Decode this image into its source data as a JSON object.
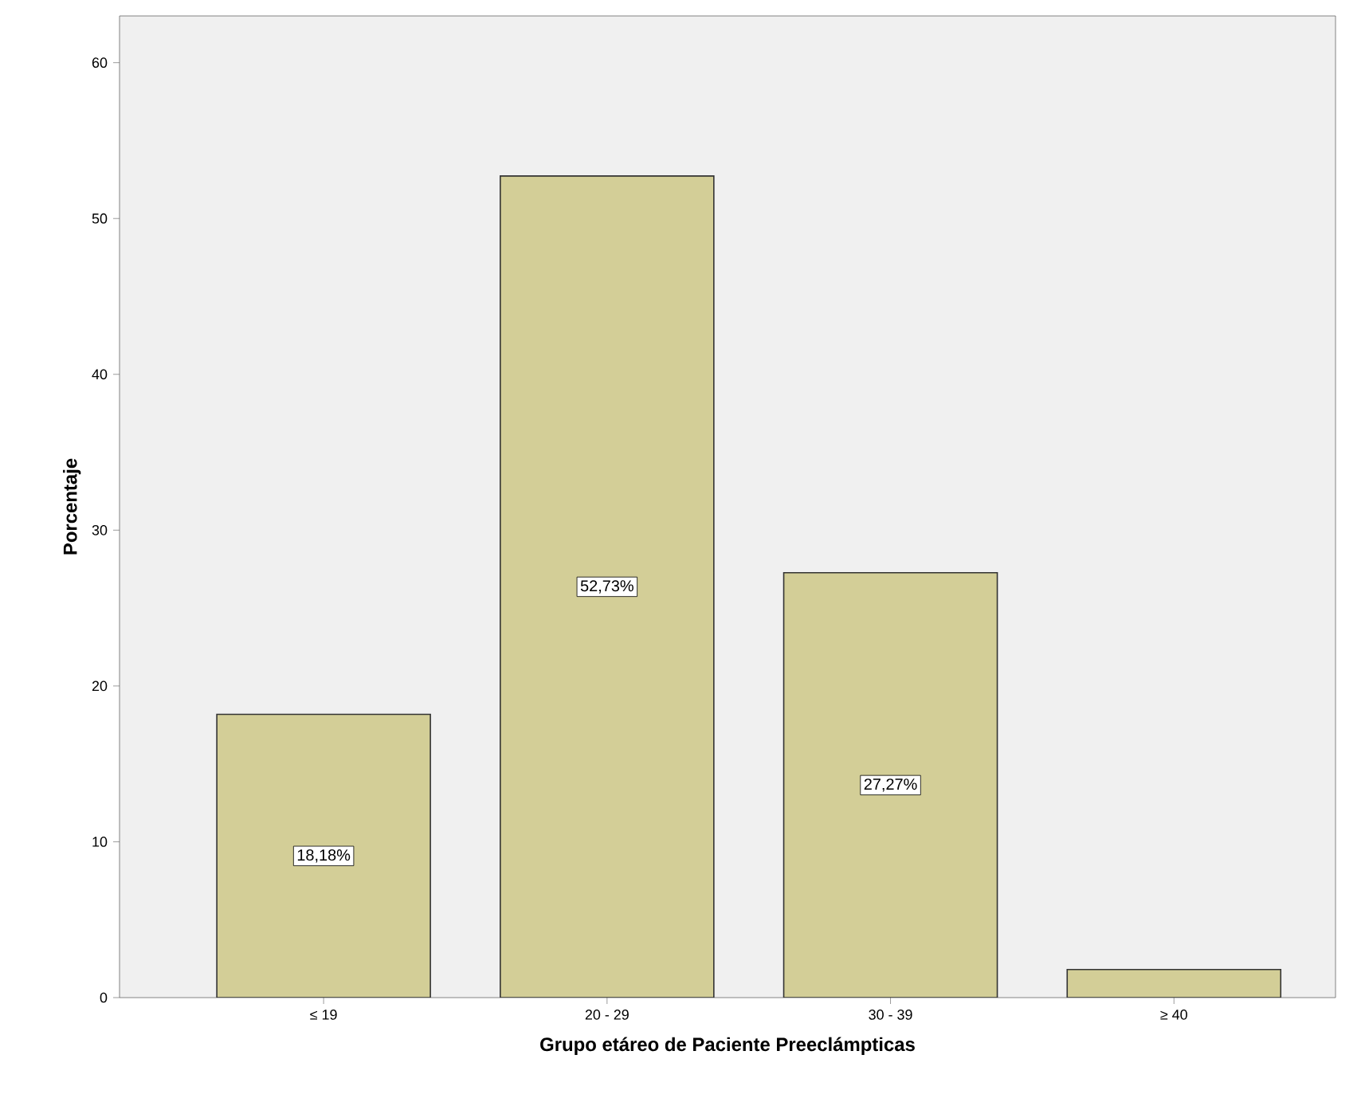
{
  "chart_data": {
    "type": "bar",
    "xlabel": "Grupo etáreo de Paciente Preeclámpticas",
    "ylabel": "Porcentaje",
    "categories": [
      "≤ 19",
      "20 - 29",
      "30 - 39",
      "≥ 40"
    ],
    "values": [
      18.18,
      52.73,
      27.27,
      1.8
    ],
    "value_labels": [
      "18,18%",
      "52,73%",
      "27,27%",
      null
    ],
    "color": "#d3ce97",
    "ylim": [
      0,
      63
    ],
    "yticks": [
      0,
      10,
      20,
      30,
      40,
      50,
      60
    ],
    "grid": false
  }
}
